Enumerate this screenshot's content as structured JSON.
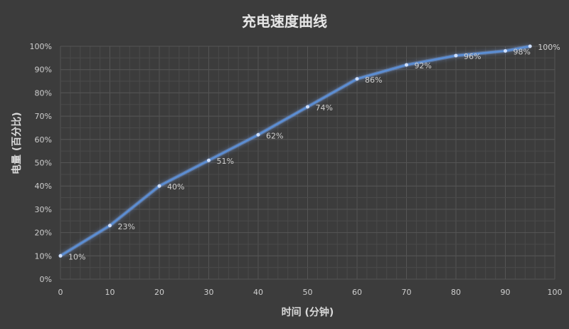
{
  "chart_data": {
    "type": "line",
    "title": "充电速度曲线",
    "xlabel": "时间 (分钟)",
    "ylabel": "电量 (百分比)",
    "x": [
      0,
      10,
      20,
      30,
      40,
      50,
      60,
      70,
      80,
      90,
      95
    ],
    "series": [
      {
        "values": [
          10,
          23,
          40,
          51,
          62,
          74,
          86,
          92,
          96,
          98,
          100
        ],
        "labels": [
          "10%",
          "23%",
          "40%",
          "51%",
          "62%",
          "74%",
          "86%",
          "92%",
          "96%",
          "98%",
          "100%"
        ]
      }
    ],
    "xlim": [
      0,
      100
    ],
    "ylim": [
      0,
      100
    ],
    "xticks": [
      "0",
      "10",
      "20",
      "30",
      "40",
      "50",
      "60",
      "70",
      "80",
      "90",
      "100"
    ],
    "yticks": [
      "0%",
      "10%",
      "20%",
      "30%",
      "40%",
      "50%",
      "60%",
      "70%",
      "80%",
      "90%",
      "100%"
    ],
    "grid": true,
    "colors": {
      "background": "#3c3c3c",
      "grid": "#555555",
      "line": "#5b8fd6",
      "glow": "#7fb0ff"
    }
  }
}
